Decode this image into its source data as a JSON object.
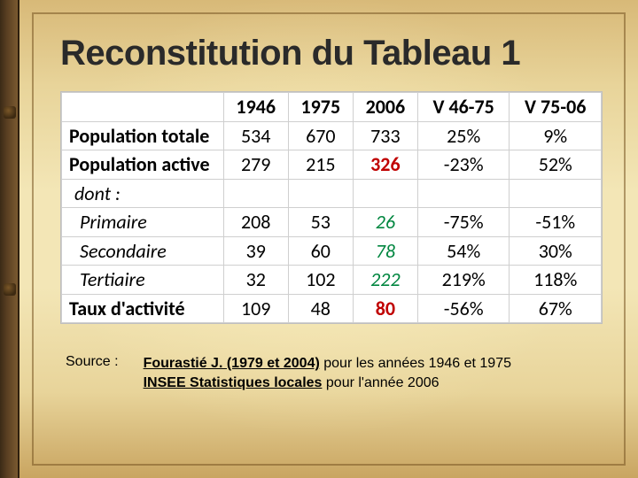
{
  "title": "Reconstitution du Tableau 1",
  "table": {
    "type": "table",
    "background_color": "#ffffff",
    "grid_color": "#cfcfcf",
    "header_fontsize": 22,
    "cell_fontsize": 22,
    "columns": [
      "",
      "1946",
      "1975",
      "2006",
      "V 46-75",
      "V 75-06"
    ],
    "col_widths_pct": [
      30,
      12,
      12,
      12,
      17,
      17
    ],
    "rows": [
      {
        "label": "Population totale",
        "style": "bold",
        "cells": [
          {
            "v": "534"
          },
          {
            "v": "670"
          },
          {
            "v": "733"
          },
          {
            "v": "25%"
          },
          {
            "v": "9%"
          }
        ]
      },
      {
        "label": "Population active",
        "style": "bold",
        "cells": [
          {
            "v": "279"
          },
          {
            "v": "215"
          },
          {
            "v": "326",
            "color": "red",
            "bold": true
          },
          {
            "v": "-23%"
          },
          {
            "v": "52%"
          }
        ]
      },
      {
        "label": "dont :",
        "style": "dont",
        "cells": [
          {
            "v": ""
          },
          {
            "v": ""
          },
          {
            "v": ""
          },
          {
            "v": ""
          },
          {
            "v": ""
          }
        ]
      },
      {
        "label": "Primaire",
        "style": "sub",
        "cells": [
          {
            "v": "208"
          },
          {
            "v": "53"
          },
          {
            "v": "26",
            "color": "green",
            "italic": true
          },
          {
            "v": "-75%"
          },
          {
            "v": "-51%"
          }
        ]
      },
      {
        "label": "Secondaire",
        "style": "sub",
        "cells": [
          {
            "v": "39"
          },
          {
            "v": "60"
          },
          {
            "v": "78",
            "color": "green",
            "italic": true
          },
          {
            "v": "54%"
          },
          {
            "v": "30%"
          }
        ]
      },
      {
        "label": "Tertiaire",
        "style": "sub",
        "cells": [
          {
            "v": "32"
          },
          {
            "v": "102"
          },
          {
            "v": "222",
            "color": "green",
            "italic": true
          },
          {
            "v": "219%"
          },
          {
            "v": "118%"
          }
        ]
      },
      {
        "label": "Taux d'activité",
        "style": "bold",
        "cells": [
          {
            "v": "109"
          },
          {
            "v": "48"
          },
          {
            "v": "80",
            "color": "red",
            "bold": true
          },
          {
            "v": "-56%"
          },
          {
            "v": "67%"
          }
        ]
      }
    ],
    "cell_colors": {
      "red": "#c00000",
      "green": "#00863f",
      "default": "#000000"
    }
  },
  "source": {
    "label": "Source :",
    "line1_bold": "Fourastié J. (1979 et 2004)",
    "line1_rest": " pour les années 1946 et 1975",
    "line2_bold": "INSEE Statistiques locales",
    "line2_rest": " pour l'année 2006"
  },
  "palette": {
    "parchment_light": "#f3e6b6",
    "parchment_dark": "#c9a561",
    "frame_border": "#785523",
    "binding": "#5a3f22"
  }
}
